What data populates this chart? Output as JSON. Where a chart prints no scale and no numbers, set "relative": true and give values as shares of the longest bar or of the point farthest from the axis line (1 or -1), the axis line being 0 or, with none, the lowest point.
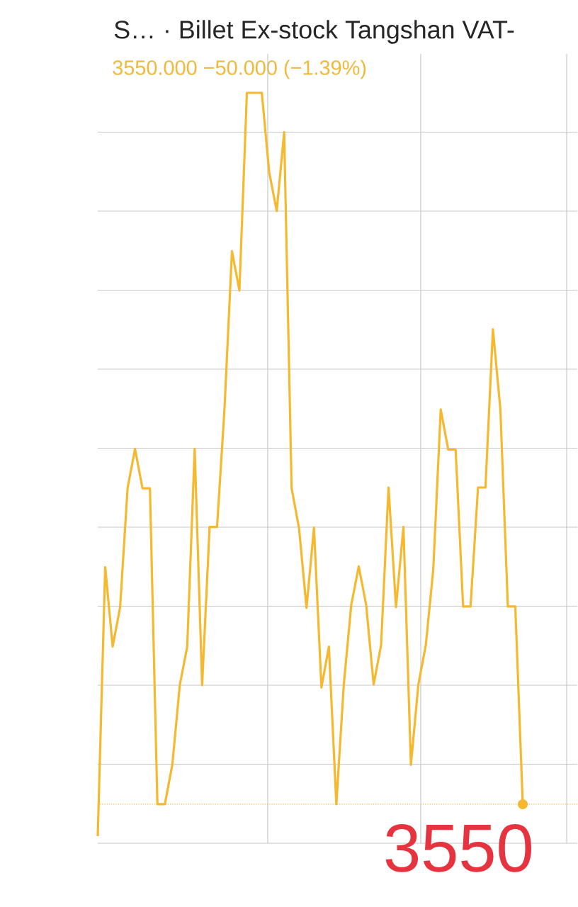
{
  "chart_data": {
    "type": "line",
    "title": "S… · Billet Ex-stock Tangshan VAT-",
    "subtitle": "3550.000  −50.000 (−1.39%)",
    "relative": true,
    "grid": true,
    "color": "#f5b82e",
    "categories": [
      null,
      null,
      null,
      null,
      null,
      null,
      null,
      null,
      null,
      null,
      null,
      null,
      null,
      null,
      null,
      null,
      null,
      null,
      null,
      null,
      null,
      null,
      null,
      null,
      null,
      null,
      null,
      null,
      null,
      null,
      null,
      null,
      null,
      null,
      null,
      null,
      null,
      null,
      null,
      null,
      null,
      null,
      null,
      null,
      null,
      null,
      null,
      null,
      null,
      null,
      null,
      null,
      null,
      null,
      null,
      null,
      null,
      null
    ],
    "values": [
      0,
      0.362,
      0.255,
      0.308,
      0.468,
      0.521,
      0.468,
      0.468,
      0.043,
      0.043,
      0.096,
      0.203,
      0.255,
      0.521,
      0.203,
      0.416,
      0.416,
      0.575,
      0.787,
      0.734,
      1,
      1,
      1,
      0.893,
      0.841,
      0.947,
      0.468,
      0.414,
      0.307,
      0.415,
      0.2,
      0.255,
      0.043,
      0.204,
      0.311,
      0.363,
      0.311,
      0.204,
      0.257,
      0.469,
      0.308,
      0.416,
      0.096,
      0.204,
      0.257,
      0.359,
      0.574,
      0.52,
      0.52,
      0.309,
      0.309,
      0.469,
      0.469,
      0.682,
      0.574,
      0.309,
      0.309,
      0.043
    ],
    "ref_lines": [
      {
        "axis": "y",
        "value": 0.043,
        "color": "#f5b82e",
        "line_style": "dotted"
      }
    ],
    "annotations": [
      {
        "text": "3550",
        "y": 0.043
      }
    ]
  }
}
